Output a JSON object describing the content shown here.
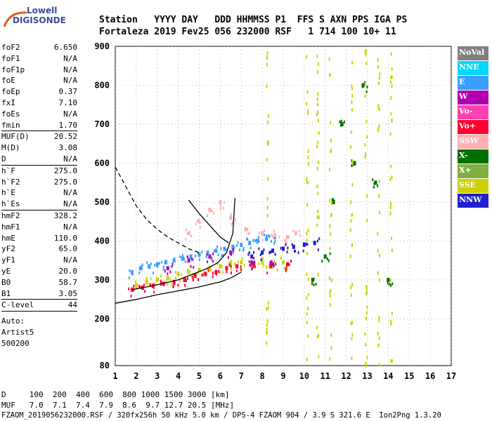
{
  "logo": {
    "line1": "Lowell",
    "line2": "DIGISONDE"
  },
  "header": {
    "row1": "Station   YYYY DAY   DDD HHMMSS P1  FFS S AXN PPS IGA PS",
    "row2": "Fortaleza 2019 Fev25 056 232000 RSF   1 714 100 10+ 11"
  },
  "params_groups": [
    [
      [
        "foF2",
        "6.650"
      ],
      [
        "foF1",
        "N/A"
      ],
      [
        "foF1p",
        "N/A"
      ],
      [
        "foE",
        "N/A"
      ],
      [
        "foEp",
        "0.37"
      ],
      [
        "fxI",
        "7.10"
      ],
      [
        "foEs",
        "N/A"
      ],
      [
        "fmin",
        "1.70"
      ]
    ],
    [
      [
        "MUF(D)",
        "20.52"
      ],
      [
        "M(D)",
        "3.08"
      ],
      [
        "D",
        "N/A"
      ]
    ],
    [
      [
        "h`F",
        "275.0"
      ],
      [
        "h`F2",
        "275.0"
      ],
      [
        "h`E",
        "N/A"
      ],
      [
        "h`Es",
        "N/A"
      ]
    ],
    [
      [
        "hmF2",
        "328.2"
      ],
      [
        "hmF1",
        "N/A"
      ],
      [
        "hmE",
        "110.0"
      ],
      [
        "yF2",
        "65.0"
      ],
      [
        "yF1",
        "N/A"
      ],
      [
        "yE",
        "20.0"
      ],
      [
        "B0",
        "58.7"
      ],
      [
        "B1",
        "3.05"
      ]
    ],
    [
      [
        "C-level",
        "44"
      ]
    ]
  ],
  "auto_block": [
    "Auto:",
    "Artist5",
    "500200"
  ],
  "footer": {
    "d_row": "D     100  200  400  600  800 1000 1500 3000 [km]",
    "muf_row": "MUF   7.0  7.1  7.4  7.9  8.6  9.7 12.7 20.5 [MHz]",
    "file_row": "FZAOM_2019056232000.RSF / 320fx256h 50 kHz 5.0 km / DPS-4 FZAOM 904 / 3.9 S 321.6 E  Ion2Png 1.3.20"
  },
  "legend": [
    {
      "label": "NoVal",
      "color": "#808080"
    },
    {
      "label": "NNE",
      "color": "#00d8ff"
    },
    {
      "label": "E",
      "color": "#3aa0ff"
    },
    {
      "label": "W",
      "color": "#b000b0"
    },
    {
      "label": "Vo-",
      "color": "#ff40b0"
    },
    {
      "label": "Vo+",
      "color": "#ff0030"
    },
    {
      "label": "SSW",
      "color": "#ffb0b0"
    },
    {
      "label": "X-",
      "color": "#007000"
    },
    {
      "label": "X+",
      "color": "#80b040"
    },
    {
      "label": "SSE",
      "color": "#d0d000"
    },
    {
      "label": "NNW",
      "color": "#2020d0"
    }
  ],
  "chart_data": {
    "type": "scatter",
    "xlabel": "",
    "ylabel": "",
    "xlim": [
      1,
      17
    ],
    "ylim": [
      80,
      900
    ],
    "x_ticks": [
      1,
      2,
      3,
      4,
      5,
      6,
      7,
      8,
      9,
      10,
      11,
      12,
      13,
      14,
      15,
      16,
      17
    ],
    "y_ticks": [
      200,
      300,
      400,
      500,
      600,
      700,
      800,
      900
    ],
    "y_tick_labels": [
      "200",
      "300",
      "400",
      "500",
      "600",
      "700",
      "800",
      "900"
    ],
    "extra_y_label": "80",
    "grid": true,
    "series": [
      {
        "color": "#3aa0ff",
        "points": [
          [
            1.8,
            320
          ],
          [
            2.2,
            330
          ],
          [
            2.6,
            335
          ],
          [
            3.0,
            340
          ],
          [
            3.4,
            345
          ],
          [
            3.8,
            350
          ],
          [
            4.2,
            355
          ],
          [
            4.6,
            360
          ],
          [
            5.0,
            365
          ],
          [
            5.4,
            370
          ],
          [
            5.8,
            375
          ],
          [
            6.2,
            380
          ],
          [
            6.6,
            385
          ],
          [
            7.0,
            390
          ],
          [
            7.4,
            395
          ],
          [
            7.8,
            400
          ],
          [
            8.2,
            405
          ],
          [
            8.6,
            410
          ]
        ]
      },
      {
        "color": "#ffb0b0",
        "points": [
          [
            4.5,
            420
          ],
          [
            5.0,
            450
          ],
          [
            5.5,
            480
          ],
          [
            6.0,
            500
          ],
          [
            6.5,
            460
          ],
          [
            7.2,
            430
          ],
          [
            8.0,
            420
          ],
          [
            8.6,
            415
          ],
          [
            9.2,
            410
          ],
          [
            9.6,
            420
          ]
        ]
      },
      {
        "color": "#d0d000",
        "points": [
          [
            2.0,
            285
          ],
          [
            2.5,
            295
          ],
          [
            3.0,
            300
          ],
          [
            3.5,
            305
          ],
          [
            4.0,
            315
          ],
          [
            4.5,
            320
          ],
          [
            5.0,
            325
          ],
          [
            5.5,
            330
          ],
          [
            6.0,
            335
          ],
          [
            6.5,
            340
          ],
          [
            7.0,
            345
          ],
          [
            7.5,
            340
          ],
          [
            8.0,
            345
          ],
          [
            8.5,
            340
          ],
          [
            9.0,
            345
          ]
        ]
      },
      {
        "color": "#ff0030",
        "points": [
          [
            1.8,
            275
          ],
          [
            2.3,
            280
          ],
          [
            2.8,
            285
          ],
          [
            3.3,
            290
          ],
          [
            3.8,
            295
          ],
          [
            4.3,
            300
          ],
          [
            4.8,
            310
          ],
          [
            5.3,
            315
          ],
          [
            5.8,
            320
          ],
          [
            6.3,
            330
          ],
          [
            6.8,
            335
          ],
          [
            7.6,
            340
          ],
          [
            8.4,
            335
          ],
          [
            9.2,
            340
          ]
        ]
      },
      {
        "color": "#2020d0",
        "points": [
          [
            7.5,
            360
          ],
          [
            8.0,
            370
          ],
          [
            8.5,
            375
          ],
          [
            9.0,
            380
          ],
          [
            9.5,
            385
          ],
          [
            10.0,
            390
          ],
          [
            10.5,
            395
          ]
        ]
      },
      {
        "color": "#007000",
        "points": [
          [
            10.4,
            300
          ],
          [
            11.0,
            360
          ],
          [
            11.4,
            500
          ],
          [
            11.8,
            700
          ],
          [
            12.4,
            600
          ],
          [
            12.8,
            800
          ],
          [
            13.4,
            550
          ],
          [
            14.0,
            300
          ]
        ]
      },
      {
        "color": "#b000b0",
        "points": [
          [
            3.5,
            330
          ],
          [
            4.5,
            350
          ],
          [
            5.5,
            360
          ],
          [
            6.5,
            370
          ],
          [
            7.5,
            345
          ],
          [
            8.5,
            340
          ]
        ]
      }
    ],
    "traces": [
      {
        "style": "dashed",
        "color": "#000",
        "points": [
          [
            1.0,
            590
          ],
          [
            1.3,
            560
          ],
          [
            1.6,
            530
          ],
          [
            2.0,
            490
          ],
          [
            2.5,
            455
          ],
          [
            3.0,
            430
          ],
          [
            3.5,
            410
          ],
          [
            4.0,
            395
          ],
          [
            4.5,
            380
          ],
          [
            5.0,
            370
          ]
        ]
      },
      {
        "style": "solid",
        "color": "#000",
        "points": [
          [
            1.0,
            240
          ],
          [
            2.0,
            250
          ],
          [
            3.0,
            262
          ],
          [
            4.0,
            272
          ],
          [
            5.0,
            282
          ],
          [
            6.0,
            295
          ],
          [
            6.5,
            305
          ],
          [
            7.0,
            320
          ]
        ]
      },
      {
        "style": "solid",
        "color": "#000",
        "points": [
          [
            1.8,
            275
          ],
          [
            2.5,
            282
          ],
          [
            3.2,
            290
          ],
          [
            4.0,
            300
          ],
          [
            4.7,
            315
          ],
          [
            5.4,
            330
          ],
          [
            5.9,
            345
          ],
          [
            6.3,
            370
          ],
          [
            6.6,
            420
          ],
          [
            6.7,
            510
          ]
        ]
      },
      {
        "style": "solid",
        "color": "#000",
        "points": [
          [
            4.5,
            505
          ],
          [
            5.0,
            470
          ],
          [
            5.5,
            440
          ],
          [
            6.0,
            410
          ],
          [
            6.4,
            395
          ]
        ]
      }
    ]
  }
}
